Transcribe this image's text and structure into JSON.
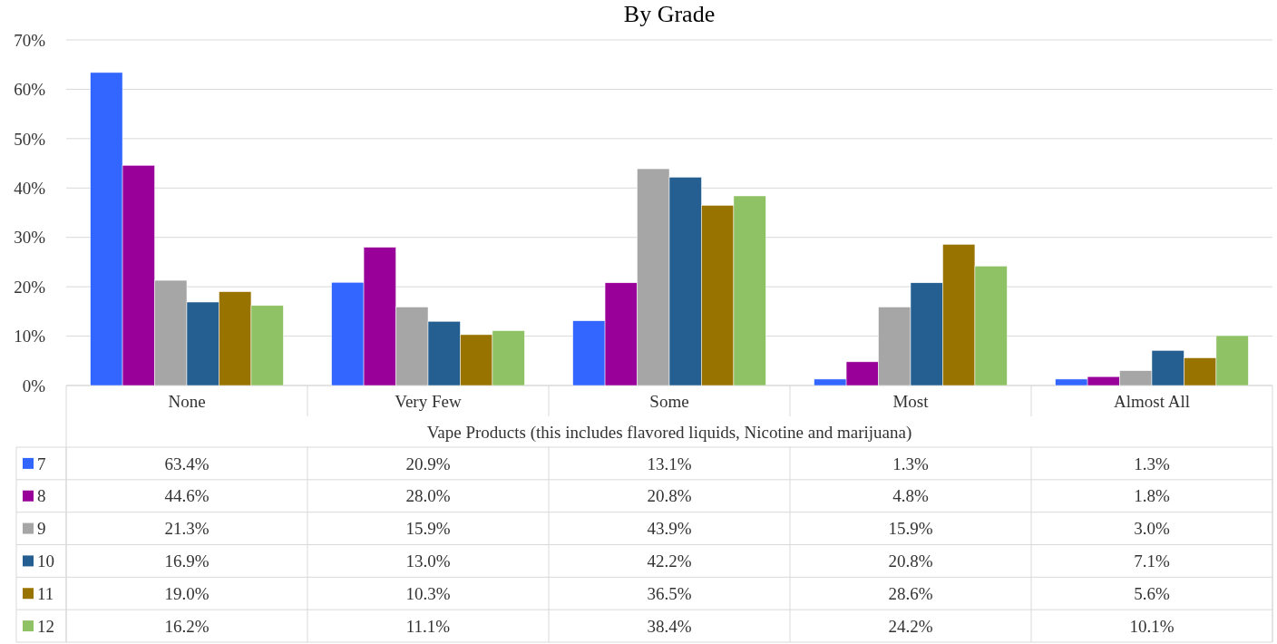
{
  "chart_data": {
    "type": "bar",
    "title": "By Grade",
    "xlabel": "Vape Products (this includes flavored liquids, Nicotine and marijuana)",
    "categories": [
      "None",
      "Very Few",
      "Some",
      "Most",
      "Almost All"
    ],
    "series": [
      {
        "name": "7",
        "color": "#3366ff",
        "values": [
          63.4,
          20.9,
          13.1,
          1.3,
          1.3
        ],
        "value_labels": [
          "63.4%",
          "20.9%",
          "13.1%",
          "1.3%",
          "1.3%"
        ]
      },
      {
        "name": "8",
        "color": "#990099",
        "values": [
          44.6,
          28.0,
          20.8,
          4.8,
          1.8
        ],
        "value_labels": [
          "44.6%",
          "28.0%",
          "20.8%",
          "4.8%",
          "1.8%"
        ]
      },
      {
        "name": "9",
        "color": "#a6a6a6",
        "values": [
          21.3,
          15.9,
          43.9,
          15.9,
          3.0
        ],
        "value_labels": [
          "21.3%",
          "15.9%",
          "43.9%",
          "15.9%",
          "3.0%"
        ]
      },
      {
        "name": "10",
        "color": "#255e91",
        "values": [
          16.9,
          13.0,
          42.2,
          20.8,
          7.1
        ],
        "value_labels": [
          "16.9%",
          "13.0%",
          "42.2%",
          "20.8%",
          "7.1%"
        ]
      },
      {
        "name": "11",
        "color": "#997300",
        "values": [
          19.0,
          10.3,
          36.5,
          28.6,
          5.6
        ],
        "value_labels": [
          "19.0%",
          "10.3%",
          "36.5%",
          "28.6%",
          "5.6%"
        ]
      },
      {
        "name": "12",
        "color": "#8fc165",
        "values": [
          16.2,
          11.1,
          38.4,
          24.2,
          10.1
        ],
        "value_labels": [
          "16.2%",
          "11.1%",
          "38.4%",
          "24.2%",
          "10.1%"
        ]
      }
    ],
    "ylim": [
      0,
      70
    ],
    "yticks": [
      {
        "value": 0,
        "label": "0%"
      },
      {
        "value": 10,
        "label": "10%"
      },
      {
        "value": 20,
        "label": "20%"
      },
      {
        "value": 30,
        "label": "30%"
      },
      {
        "value": 40,
        "label": "40%"
      },
      {
        "value": 50,
        "label": "50%"
      },
      {
        "value": 60,
        "label": "60%"
      },
      {
        "value": 70,
        "label": "70%"
      }
    ],
    "grid": "y",
    "legend": "bottom"
  }
}
